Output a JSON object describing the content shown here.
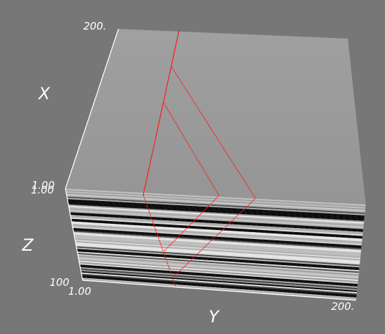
{
  "axes": {
    "x": {
      "title": "X",
      "tick_min": "1.00",
      "tick_max": "200."
    },
    "y": {
      "title": "Y",
      "tick_min": "1.00",
      "tick_max": "200."
    },
    "z": {
      "title": "Z",
      "tick_min": "1.00",
      "tick_max": "100"
    }
  },
  "colors": {
    "background": "#777777",
    "top_face": "#9b9b9b",
    "axis_lines": "#ffffff",
    "trace_lines": "#ff1a1a"
  }
}
